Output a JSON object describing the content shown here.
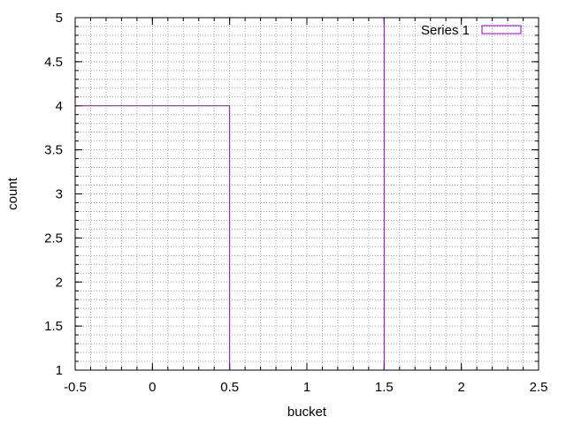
{
  "chart_data": {
    "type": "bar",
    "style": "histogram-steps",
    "xlabel": "bucket",
    "ylabel": "count",
    "xlim": [
      -0.5,
      2.5
    ],
    "ylim": [
      1,
      5
    ],
    "x_major_ticks": [
      -0.5,
      0,
      0.5,
      1,
      1.5,
      2,
      2.5
    ],
    "x_tick_labels": [
      "-0.5",
      "0",
      "0.5",
      "1",
      "1.5",
      "2",
      "2.5"
    ],
    "y_major_ticks": [
      1,
      1.5,
      2,
      2.5,
      3,
      3.5,
      4,
      4.5,
      5
    ],
    "y_tick_labels": [
      "1",
      "1.5",
      "2",
      "2.5",
      "3",
      "3.5",
      "4",
      "4.5",
      "5"
    ],
    "x_minor_step": 0.1,
    "y_minor_step": 0.1,
    "grid": true,
    "legend_position": "top-right",
    "series": [
      {
        "name": "Series 1",
        "color": "#9400d3",
        "bars": [
          {
            "x_start": -0.5,
            "x_end": 0.5,
            "value": 4
          },
          {
            "x_start": 0.5,
            "x_end": 1.5,
            "value": 1
          },
          {
            "x_start": 1.5,
            "x_end": 2.5,
            "value": 5
          }
        ]
      }
    ]
  }
}
